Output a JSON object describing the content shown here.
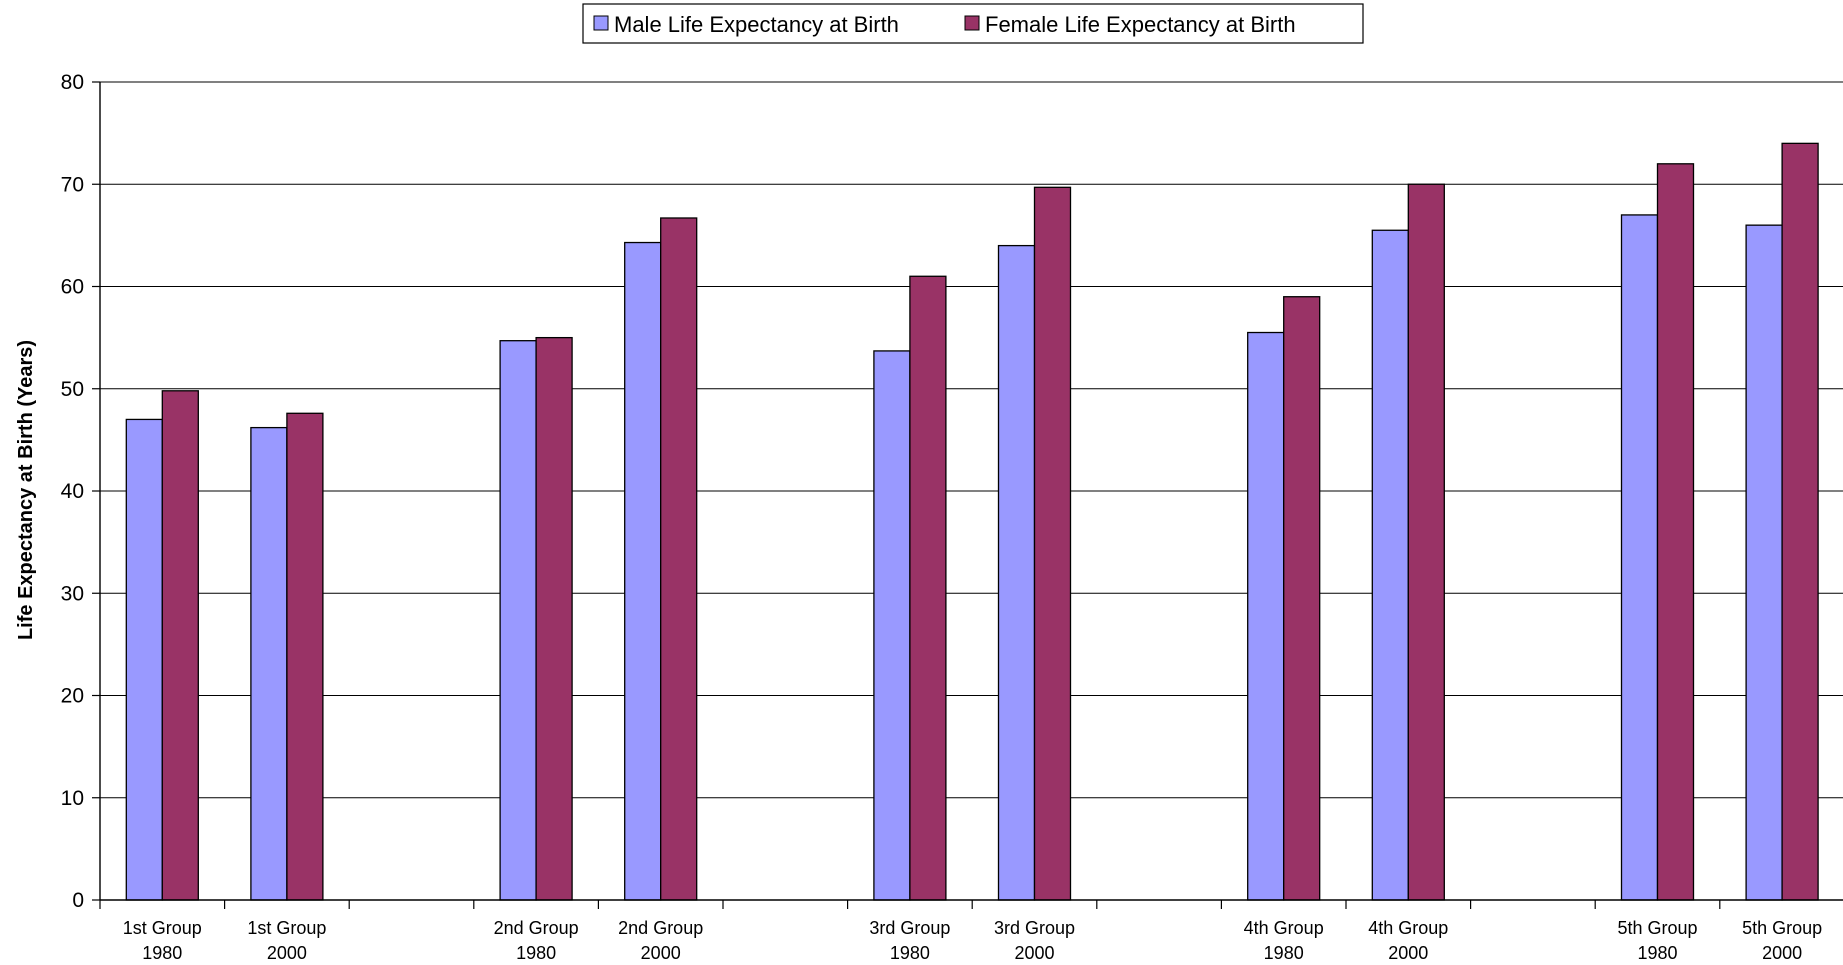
{
  "chart_data": {
    "type": "bar",
    "title": "",
    "xlabel": "",
    "ylabel": "Life Expectancy at Birth (Years)",
    "ylim": [
      0,
      80
    ],
    "yticks": [
      0,
      10,
      20,
      30,
      40,
      50,
      60,
      70,
      80
    ],
    "grid": true,
    "legend_position": "top-center",
    "categories": [
      [
        "1st Group",
        "1980"
      ],
      [
        "1st Group",
        "2000"
      ],
      [
        "",
        ""
      ],
      [
        "2nd Group",
        "1980"
      ],
      [
        "2nd Group",
        "2000"
      ],
      [
        "",
        ""
      ],
      [
        "3rd Group",
        "1980"
      ],
      [
        "3rd Group",
        "2000"
      ],
      [
        "",
        ""
      ],
      [
        "4th Group",
        "1980"
      ],
      [
        "4th Group",
        "2000"
      ],
      [
        "",
        ""
      ],
      [
        "5th Group",
        "1980"
      ],
      [
        "5th Group",
        "2000"
      ]
    ],
    "series": [
      {
        "name": "Male Life Expectancy at Birth",
        "color": "#9999ff",
        "values": [
          47.0,
          46.2,
          null,
          54.7,
          64.3,
          null,
          53.7,
          64.0,
          null,
          55.5,
          65.5,
          null,
          67.0,
          66.0
        ]
      },
      {
        "name": "Female Life Expectancy at Birth",
        "color": "#993366",
        "values": [
          49.8,
          47.6,
          null,
          55.0,
          66.7,
          null,
          61.0,
          69.7,
          null,
          59.0,
          70.0,
          null,
          72.0,
          74.0
        ]
      }
    ]
  }
}
